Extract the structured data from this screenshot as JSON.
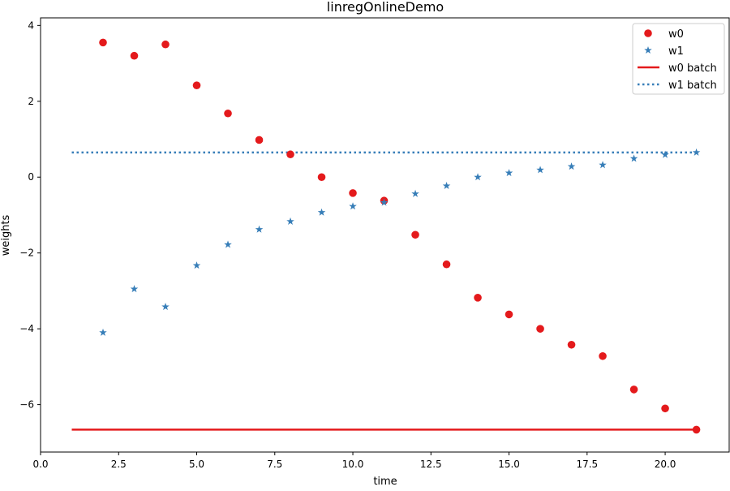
{
  "chart_data": {
    "type": "scatter",
    "title": "linregOnlineDemo",
    "xlabel": "time",
    "ylabel": "weights",
    "xlim": [
      0,
      22.05
    ],
    "ylim": [
      -7.25,
      4.2
    ],
    "xticks": [
      0.0,
      2.5,
      5.0,
      7.5,
      10.0,
      12.5,
      15.0,
      17.5,
      20.0
    ],
    "xtick_labels": [
      "0.0",
      "2.5",
      "5.0",
      "7.5",
      "10.0",
      "12.5",
      "15.0",
      "17.5",
      "20.0"
    ],
    "yticks": [
      4,
      2,
      0,
      -2,
      -4,
      -6
    ],
    "ytick_labels": [
      "4",
      "2",
      "0",
      "−2",
      "−4",
      "−6"
    ],
    "grid": false,
    "legend_position": "top-right",
    "series": [
      {
        "name": "w0",
        "kind": "scatter",
        "marker": "circle",
        "color": "#e41a1c",
        "x": [
          2,
          3,
          4,
          5,
          6,
          7,
          8,
          9,
          10,
          11,
          12,
          13,
          14,
          15,
          16,
          17,
          18,
          19,
          20,
          21
        ],
        "y": [
          3.55,
          3.2,
          3.5,
          2.42,
          1.68,
          0.98,
          0.6,
          0.0,
          -0.42,
          -0.62,
          -1.52,
          -2.3,
          -3.18,
          -3.62,
          -4.0,
          -4.42,
          -4.72,
          -5.6,
          -6.1,
          -6.66
        ]
      },
      {
        "name": "w1",
        "kind": "scatter",
        "marker": "star",
        "color": "#377eb8",
        "x": [
          2,
          3,
          4,
          5,
          6,
          7,
          8,
          9,
          10,
          11,
          12,
          13,
          14,
          15,
          16,
          17,
          18,
          19,
          20,
          21
        ],
        "y": [
          -4.1,
          -2.95,
          -3.42,
          -2.33,
          -1.78,
          -1.38,
          -1.17,
          -0.93,
          -0.77,
          -0.67,
          -0.44,
          -0.23,
          0.0,
          0.11,
          0.19,
          0.28,
          0.32,
          0.49,
          0.59,
          0.65
        ]
      },
      {
        "name": "w0 batch",
        "kind": "line",
        "style": "solid",
        "color": "#e41a1c",
        "x": [
          1,
          21
        ],
        "y": [
          -6.66,
          -6.66
        ]
      },
      {
        "name": "w1 batch",
        "kind": "line",
        "style": "dotted",
        "color": "#377eb8",
        "x": [
          1,
          21
        ],
        "y": [
          0.65,
          0.65
        ]
      }
    ]
  }
}
